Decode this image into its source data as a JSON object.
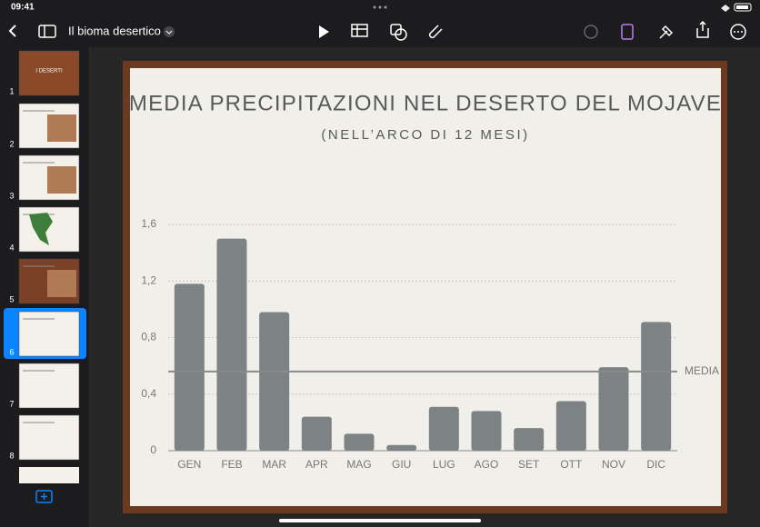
{
  "status": {
    "time": "09:41"
  },
  "toolbar": {
    "title": "Il bioma desertico"
  },
  "slides": [
    {
      "number": 1,
      "title": "I DESERTI"
    },
    {
      "number": 2
    },
    {
      "number": 3
    },
    {
      "number": 4
    },
    {
      "number": 5
    },
    {
      "number": 6
    },
    {
      "number": 7
    },
    {
      "number": 8
    }
  ],
  "chart_data": {
    "type": "bar",
    "title": "MEDIA PRECIPITAZIONI NEL DESERTO DEL MOJAVE",
    "subtitle": "(NELL’ARCO DI 12 MESI)",
    "categories": [
      "GEN",
      "FEB",
      "MAR",
      "APR",
      "MAG",
      "GIU",
      "LUG",
      "AGO",
      "SET",
      "OTT",
      "NOV",
      "DIC"
    ],
    "values": [
      1.18,
      1.5,
      0.98,
      0.24,
      0.12,
      0.04,
      0.31,
      0.28,
      0.16,
      0.35,
      0.59,
      0.91
    ],
    "color": "#7d8384",
    "ylim": [
      0,
      1.6
    ],
    "yticks": [
      0,
      {
        "value": 0.4,
        "label": "0,4"
      },
      {
        "value": 0.8,
        "label": "0,8"
      },
      {
        "value": 1.2,
        "label": "1,2"
      },
      {
        "value": 1.6,
        "label": "1,6"
      }
    ],
    "grid": true,
    "reference_line": {
      "value": 0.56,
      "label": "MEDIA"
    }
  }
}
